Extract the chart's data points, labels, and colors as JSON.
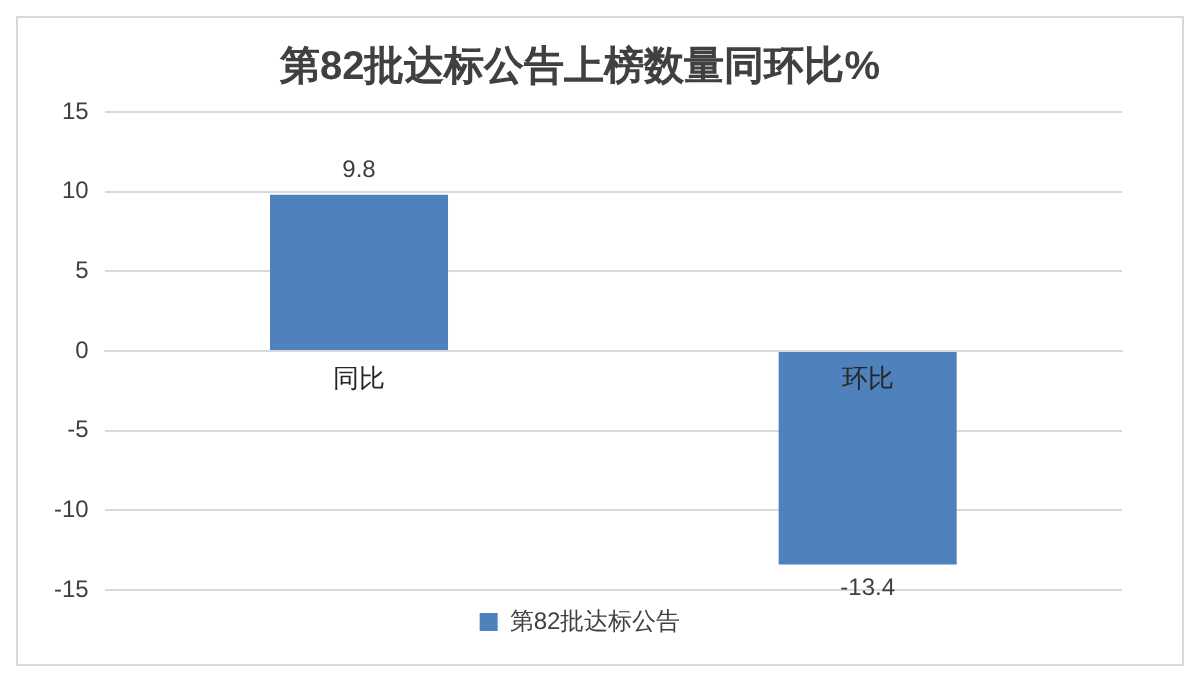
{
  "chart_data": {
    "type": "bar",
    "title": "第82批达标公告上榜数量同环比%",
    "categories": [
      "同比",
      "环比"
    ],
    "series": [
      {
        "name": "第82批达标公告",
        "color": "#4f81bd",
        "values": [
          9.8,
          -13.4
        ]
      }
    ],
    "ylim": [
      -15,
      15
    ],
    "yticks": [
      -15,
      -10,
      -5,
      0,
      5,
      10,
      15
    ],
    "grid": "y",
    "legend": "bottom",
    "data_labels": true
  }
}
